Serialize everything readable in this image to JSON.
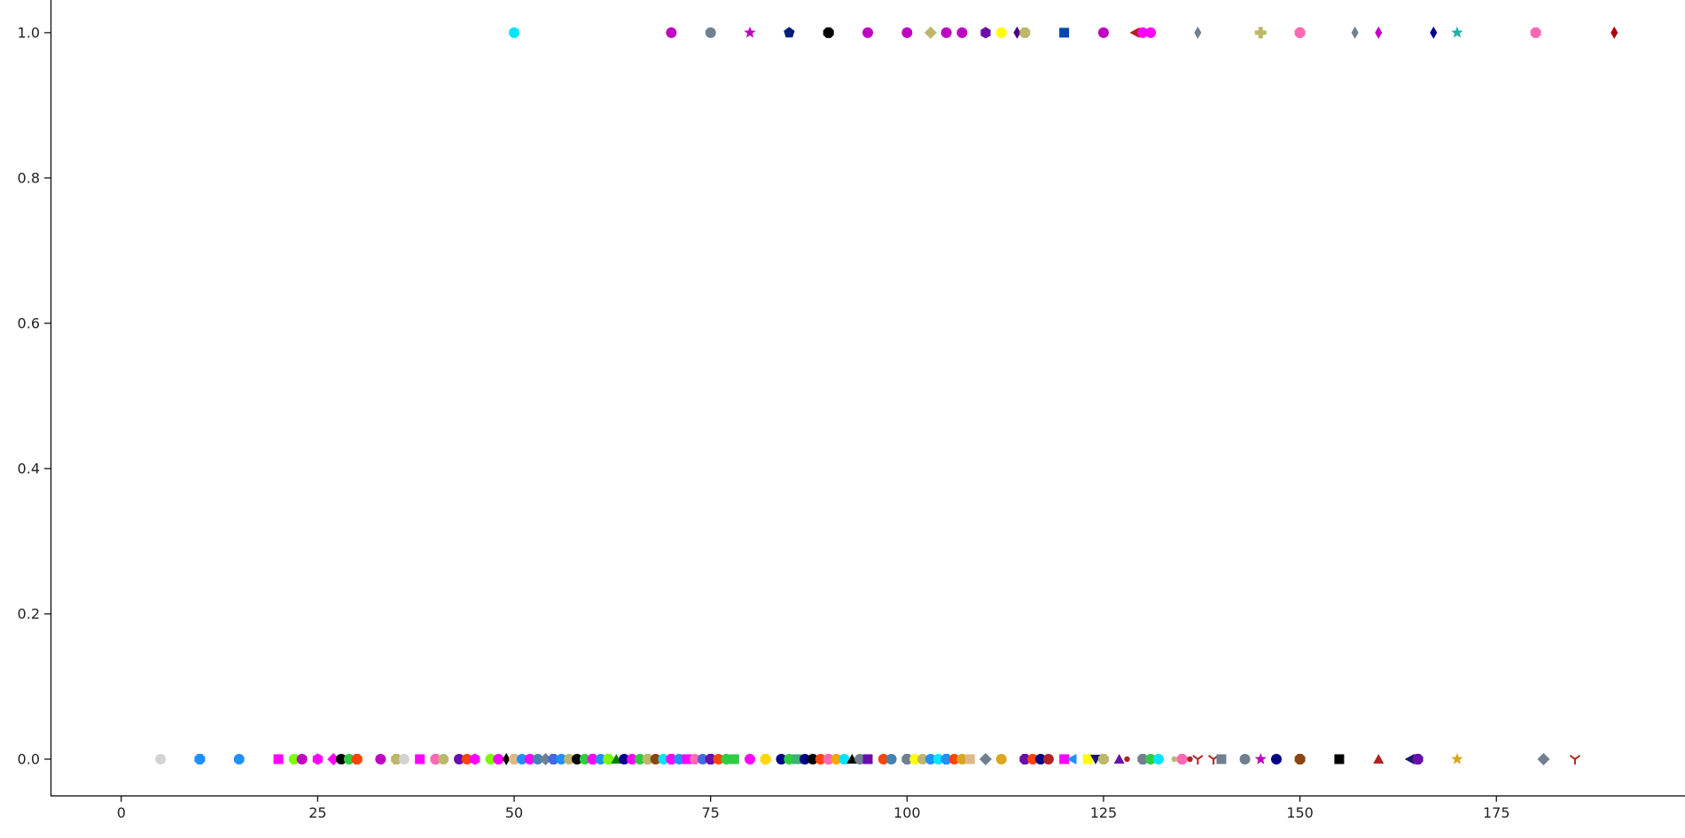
{
  "chart_data": {
    "type": "scatter",
    "title": "",
    "xlabel": "",
    "ylabel": "",
    "xlim": [
      -9,
      199
    ],
    "ylim": [
      -0.05,
      1.045
    ],
    "grid": false,
    "legend": "none",
    "x_ticks": [
      0,
      25,
      50,
      75,
      100,
      125,
      150,
      175
    ],
    "y_ticks": [
      0.0,
      0.2,
      0.4,
      0.6,
      0.8,
      1.0
    ],
    "x_tick_labels": [
      "0",
      "25",
      "50",
      "75",
      "100",
      "125",
      "150",
      "175"
    ],
    "y_tick_labels": [
      "0.0",
      "0.2",
      "0.4",
      "0.6",
      "0.8",
      "1.0"
    ],
    "points": [
      {
        "x": 50,
        "y": 1,
        "color": "#00e5ff",
        "marker": "circle"
      },
      {
        "x": 70,
        "y": 1,
        "color": "#c000c0",
        "marker": "circle"
      },
      {
        "x": 75,
        "y": 1,
        "color": "#708090",
        "marker": "circle"
      },
      {
        "x": 80,
        "y": 1,
        "color": "#c000c0",
        "marker": "star"
      },
      {
        "x": 85,
        "y": 1,
        "color": "#001f7a",
        "marker": "pentagon"
      },
      {
        "x": 90,
        "y": 1,
        "color": "#000000",
        "marker": "octagon"
      },
      {
        "x": 95,
        "y": 1,
        "color": "#c000c0",
        "marker": "circle"
      },
      {
        "x": 100,
        "y": 1,
        "color": "#c000c0",
        "marker": "circle"
      },
      {
        "x": 103,
        "y": 1,
        "color": "#bdb76b",
        "marker": "diamond"
      },
      {
        "x": 105,
        "y": 1,
        "color": "#c000c0",
        "marker": "circle"
      },
      {
        "x": 107,
        "y": 1,
        "color": "#c000c0",
        "marker": "circle"
      },
      {
        "x": 110,
        "y": 1,
        "color": "#6a0dad",
        "marker": "hexagon"
      },
      {
        "x": 112,
        "y": 1,
        "color": "#ffff00",
        "marker": "circle"
      },
      {
        "x": 114,
        "y": 1,
        "color": "#4b0082",
        "marker": "thin_diamond"
      },
      {
        "x": 115,
        "y": 1,
        "color": "#bdb76b",
        "marker": "octagon"
      },
      {
        "x": 120,
        "y": 1,
        "color": "#0047ab",
        "marker": "square"
      },
      {
        "x": 125,
        "y": 1,
        "color": "#c000c0",
        "marker": "circle"
      },
      {
        "x": 129,
        "y": 1,
        "color": "#b22222",
        "marker": "triangle_left"
      },
      {
        "x": 130,
        "y": 1,
        "color": "#ff00ff",
        "marker": "circle"
      },
      {
        "x": 131,
        "y": 1,
        "color": "#ff00ff",
        "marker": "circle"
      },
      {
        "x": 137,
        "y": 1,
        "color": "#708090",
        "marker": "thin_diamond"
      },
      {
        "x": 145,
        "y": 1,
        "color": "#bdb76b",
        "marker": "plus"
      },
      {
        "x": 150,
        "y": 1,
        "color": "#ff69b4",
        "marker": "octagon"
      },
      {
        "x": 157,
        "y": 1,
        "color": "#708090",
        "marker": "thin_diamond"
      },
      {
        "x": 160,
        "y": 1,
        "color": "#c000c0",
        "marker": "thin_diamond"
      },
      {
        "x": 167,
        "y": 1,
        "color": "#00008b",
        "marker": "thin_diamond"
      },
      {
        "x": 170,
        "y": 1,
        "color": "#20b2aa",
        "marker": "star"
      },
      {
        "x": 180,
        "y": 1,
        "color": "#ff69b4",
        "marker": "octagon"
      },
      {
        "x": 190,
        "y": 1,
        "color": "#b00000",
        "marker": "thin_diamond"
      },
      {
        "x": 5,
        "y": 0,
        "color": "#d3d3d3",
        "marker": "circle"
      },
      {
        "x": 10,
        "y": 0,
        "color": "#1e90ff",
        "marker": "octagon"
      },
      {
        "x": 15,
        "y": 0,
        "color": "#1e90ff",
        "marker": "circle"
      },
      {
        "x": 20,
        "y": 0,
        "color": "#ff00ff",
        "marker": "square"
      },
      {
        "x": 22,
        "y": 0,
        "color": "#7cfc00",
        "marker": "circle"
      },
      {
        "x": 23,
        "y": 0,
        "color": "#c000c0",
        "marker": "circle"
      },
      {
        "x": 25,
        "y": 0,
        "color": "#ff00ff",
        "marker": "hexagon"
      },
      {
        "x": 27,
        "y": 0,
        "color": "#ff00ff",
        "marker": "diamond"
      },
      {
        "x": 28,
        "y": 0,
        "color": "#000000",
        "marker": "circle"
      },
      {
        "x": 29,
        "y": 0,
        "color": "#2ecc40",
        "marker": "circle"
      },
      {
        "x": 30,
        "y": 0,
        "color": "#ff4500",
        "marker": "octagon"
      },
      {
        "x": 33,
        "y": 0,
        "color": "#c000c0",
        "marker": "circle"
      },
      {
        "x": 35,
        "y": 0,
        "color": "#bdb76b",
        "marker": "octagon"
      },
      {
        "x": 36,
        "y": 0,
        "color": "#d3d3d3",
        "marker": "circle"
      },
      {
        "x": 38,
        "y": 0,
        "color": "#ff00ff",
        "marker": "square"
      },
      {
        "x": 40,
        "y": 0,
        "color": "#ff69b4",
        "marker": "octagon"
      },
      {
        "x": 41,
        "y": 0,
        "color": "#bdb76b",
        "marker": "circle"
      },
      {
        "x": 43,
        "y": 0,
        "color": "#6a0dad",
        "marker": "circle"
      },
      {
        "x": 44,
        "y": 0,
        "color": "#ff4500",
        "marker": "circle"
      },
      {
        "x": 45,
        "y": 0,
        "color": "#ff00ff",
        "marker": "hexagon"
      },
      {
        "x": 47,
        "y": 0,
        "color": "#7cfc00",
        "marker": "circle"
      },
      {
        "x": 48,
        "y": 0,
        "color": "#ff00ff",
        "marker": "circle"
      },
      {
        "x": 49,
        "y": 0,
        "color": "#000000",
        "marker": "thin_diamond"
      },
      {
        "x": 50,
        "y": 0,
        "color": "#deb887",
        "marker": "octagon"
      },
      {
        "x": 51,
        "y": 0,
        "color": "#1e90ff",
        "marker": "circle"
      },
      {
        "x": 52,
        "y": 0,
        "color": "#ff00ff",
        "marker": "circle"
      },
      {
        "x": 53,
        "y": 0,
        "color": "#4682b4",
        "marker": "circle"
      },
      {
        "x": 54,
        "y": 0,
        "color": "#708090",
        "marker": "diamond"
      },
      {
        "x": 55,
        "y": 0,
        "color": "#4169e1",
        "marker": "octagon"
      },
      {
        "x": 56,
        "y": 0,
        "color": "#1e90ff",
        "marker": "circle"
      },
      {
        "x": 57,
        "y": 0,
        "color": "#bdb76b",
        "marker": "circle"
      },
      {
        "x": 58,
        "y": 0,
        "color": "#000000",
        "marker": "circle"
      },
      {
        "x": 59,
        "y": 0,
        "color": "#2ecc40",
        "marker": "circle"
      },
      {
        "x": 60,
        "y": 0,
        "color": "#ff00ff",
        "marker": "octagon"
      },
      {
        "x": 61,
        "y": 0,
        "color": "#1e90ff",
        "marker": "circle"
      },
      {
        "x": 62,
        "y": 0,
        "color": "#7cfc00",
        "marker": "octagon"
      },
      {
        "x": 63,
        "y": 0,
        "color": "#008000",
        "marker": "triangle_up"
      },
      {
        "x": 64,
        "y": 0,
        "color": "#00008b",
        "marker": "circle"
      },
      {
        "x": 65,
        "y": 0,
        "color": "#ff00ff",
        "marker": "circle"
      },
      {
        "x": 66,
        "y": 0,
        "color": "#2ecc40",
        "marker": "circle"
      },
      {
        "x": 67,
        "y": 0,
        "color": "#bdb76b",
        "marker": "octagon"
      },
      {
        "x": 68,
        "y": 0,
        "color": "#8b4513",
        "marker": "circle"
      },
      {
        "x": 69,
        "y": 0,
        "color": "#00e5ff",
        "marker": "circle"
      },
      {
        "x": 70,
        "y": 0,
        "color": "#ff00ff",
        "marker": "octagon"
      },
      {
        "x": 71,
        "y": 0,
        "color": "#1e90ff",
        "marker": "circle"
      },
      {
        "x": 72,
        "y": 0,
        "color": "#ff00ff",
        "marker": "square"
      },
      {
        "x": 73,
        "y": 0,
        "color": "#ff69b4",
        "marker": "circle"
      },
      {
        "x": 74,
        "y": 0,
        "color": "#4169e1",
        "marker": "circle"
      },
      {
        "x": 75,
        "y": 0,
        "color": "#6a0dad",
        "marker": "octagon"
      },
      {
        "x": 76,
        "y": 0,
        "color": "#ff4500",
        "marker": "circle"
      },
      {
        "x": 77,
        "y": 0,
        "color": "#2ecc40",
        "marker": "circle"
      },
      {
        "x": 78,
        "y": 0,
        "color": "#2ecc40",
        "marker": "square"
      },
      {
        "x": 80,
        "y": 0,
        "color": "#ff00ff",
        "marker": "circle"
      },
      {
        "x": 82,
        "y": 0,
        "color": "#ffd700",
        "marker": "octagon"
      },
      {
        "x": 84,
        "y": 0,
        "color": "#00008b",
        "marker": "circle"
      },
      {
        "x": 85,
        "y": 0,
        "color": "#2ecc40",
        "marker": "circle"
      },
      {
        "x": 86,
        "y": 0,
        "color": "#3cb371",
        "marker": "square"
      },
      {
        "x": 87,
        "y": 0,
        "color": "#00008b",
        "marker": "circle"
      },
      {
        "x": 88,
        "y": 0,
        "color": "#000000",
        "marker": "circle"
      },
      {
        "x": 89,
        "y": 0,
        "color": "#ff4500",
        "marker": "circle"
      },
      {
        "x": 90,
        "y": 0,
        "color": "#ff69b4",
        "marker": "octagon"
      },
      {
        "x": 91,
        "y": 0,
        "color": "#ffa500",
        "marker": "circle"
      },
      {
        "x": 92,
        "y": 0,
        "color": "#00e5ff",
        "marker": "circle"
      },
      {
        "x": 93,
        "y": 0,
        "color": "#000000",
        "marker": "triangle_up"
      },
      {
        "x": 94,
        "y": 0,
        "color": "#708090",
        "marker": "circle"
      },
      {
        "x": 95,
        "y": 0,
        "color": "#6a0dad",
        "marker": "square"
      },
      {
        "x": 97,
        "y": 0,
        "color": "#ff4500",
        "marker": "circle"
      },
      {
        "x": 98,
        "y": 0,
        "color": "#4682b4",
        "marker": "circle"
      },
      {
        "x": 100,
        "y": 0,
        "color": "#708090",
        "marker": "octagon"
      },
      {
        "x": 101,
        "y": 0,
        "color": "#ffff00",
        "marker": "circle"
      },
      {
        "x": 102,
        "y": 0,
        "color": "#bdb76b",
        "marker": "circle"
      },
      {
        "x": 103,
        "y": 0,
        "color": "#1e90ff",
        "marker": "circle"
      },
      {
        "x": 104,
        "y": 0,
        "color": "#00e5ff",
        "marker": "circle"
      },
      {
        "x": 105,
        "y": 0,
        "color": "#1e90ff",
        "marker": "octagon"
      },
      {
        "x": 106,
        "y": 0,
        "color": "#ff4500",
        "marker": "circle"
      },
      {
        "x": 107,
        "y": 0,
        "color": "#daa520",
        "marker": "circle"
      },
      {
        "x": 108,
        "y": 0,
        "color": "#deb887",
        "marker": "square"
      },
      {
        "x": 110,
        "y": 0,
        "color": "#708090",
        "marker": "diamond"
      },
      {
        "x": 112,
        "y": 0,
        "color": "#daa520",
        "marker": "circle"
      },
      {
        "x": 115,
        "y": 0,
        "color": "#6a0dad",
        "marker": "octagon"
      },
      {
        "x": 116,
        "y": 0,
        "color": "#ff4500",
        "marker": "circle"
      },
      {
        "x": 117,
        "y": 0,
        "color": "#00008b",
        "marker": "circle"
      },
      {
        "x": 118,
        "y": 0,
        "color": "#b22222",
        "marker": "circle"
      },
      {
        "x": 120,
        "y": 0,
        "color": "#ff00ff",
        "marker": "square"
      },
      {
        "x": 121,
        "y": 0,
        "color": "#1e90ff",
        "marker": "triangle_left"
      },
      {
        "x": 123,
        "y": 0,
        "color": "#ffff00",
        "marker": "square"
      },
      {
        "x": 124,
        "y": 0,
        "color": "#191970",
        "marker": "triangle_down"
      },
      {
        "x": 125,
        "y": 0,
        "color": "#bdb76b",
        "marker": "octagon"
      },
      {
        "x": 127,
        "y": 0,
        "color": "#6a0dad",
        "marker": "triangle_up"
      },
      {
        "x": 128,
        "y": 0,
        "color": "#b22222",
        "marker": "small_circle"
      },
      {
        "x": 130,
        "y": 0,
        "color": "#708090",
        "marker": "octagon"
      },
      {
        "x": 131,
        "y": 0,
        "color": "#2ecc40",
        "marker": "circle"
      },
      {
        "x": 132,
        "y": 0,
        "color": "#00e5ff",
        "marker": "circle"
      },
      {
        "x": 134,
        "y": 0,
        "color": "#bdb76b",
        "marker": "small_circle"
      },
      {
        "x": 135,
        "y": 0,
        "color": "#ff69b4",
        "marker": "octagon"
      },
      {
        "x": 136,
        "y": 0,
        "color": "#b22222",
        "marker": "small_circle"
      },
      {
        "x": 137,
        "y": 0,
        "color": "#b22222",
        "marker": "tri_down"
      },
      {
        "x": 139,
        "y": 0,
        "color": "#b22222",
        "marker": "tri_down"
      },
      {
        "x": 140,
        "y": 0,
        "color": "#708090",
        "marker": "square"
      },
      {
        "x": 143,
        "y": 0,
        "color": "#708090",
        "marker": "circle"
      },
      {
        "x": 145,
        "y": 0,
        "color": "#c000c0",
        "marker": "star"
      },
      {
        "x": 147,
        "y": 0,
        "color": "#00008b",
        "marker": "circle"
      },
      {
        "x": 150,
        "y": 0,
        "color": "#8b4513",
        "marker": "octagon"
      },
      {
        "x": 155,
        "y": 0,
        "color": "#000000",
        "marker": "square"
      },
      {
        "x": 160,
        "y": 0,
        "color": "#b22222",
        "marker": "triangle_up"
      },
      {
        "x": 164,
        "y": 0,
        "color": "#191970",
        "marker": "triangle_left"
      },
      {
        "x": 165,
        "y": 0,
        "color": "#6a0dad",
        "marker": "octagon"
      },
      {
        "x": 170,
        "y": 0,
        "color": "#daa520",
        "marker": "star"
      },
      {
        "x": 181,
        "y": 0,
        "color": "#708090",
        "marker": "diamond"
      },
      {
        "x": 185,
        "y": 0,
        "color": "#b22222",
        "marker": "tri_down"
      }
    ]
  }
}
